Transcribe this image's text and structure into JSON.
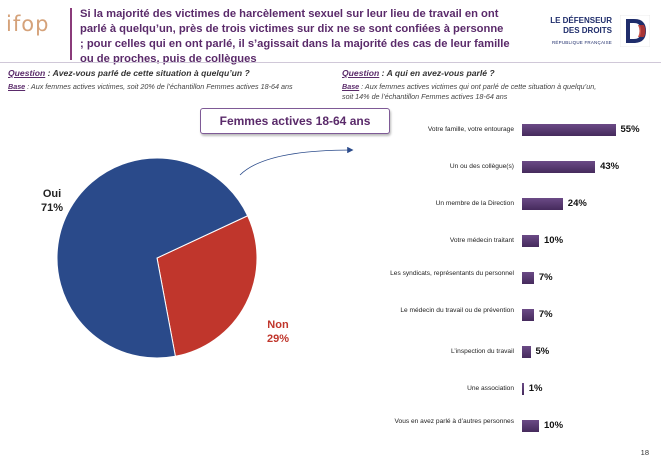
{
  "header": {
    "logo_text": "ifop",
    "headline": "Si la majorité des victimes de harcèlement sexuel sur leur lieu de travail en ont parlé à quelqu’un, près de trois victimes sur dix ne se sont confiées à personne ; pour celles qui en ont parlé, il s’agissait dans la majorité des cas de leur famille ou de proches, puis de collègues",
    "defenseur_line1": "LE DÉFENSEUR",
    "defenseur_line2": "DES DROITS",
    "defenseur_small": "RÉPUBLIQUE FRANÇAISE",
    "d_letter": "D"
  },
  "left": {
    "question_label": "Question",
    "question_text": " : Avez-vous parlé de cette situation à quelqu’un ?",
    "base_label": "Base",
    "base_text": " : Aux femmes actives victimes, soit 20% de l’échantillon Femmes actives 18-64 ans",
    "banner": "Femmes actives 18-64 ans"
  },
  "right": {
    "question_label": "Question",
    "question_text": " : A qui en avez-vous parlé ?",
    "base_label": "Base",
    "base_text": " : Aux femmes actives victimes qui ont parlé de cette situation à quelqu’un, soit 14% de l’échantillon Femmes actives 18-64 ans"
  },
  "colors": {
    "oui": "#2a4a8a",
    "non": "#c0362c",
    "bar": "#55386e",
    "accent": "#5a2a6a"
  },
  "chart_data": [
    {
      "type": "pie",
      "categories": [
        "Oui",
        "Non"
      ],
      "values": [
        71,
        29
      ],
      "labels": [
        "71%",
        "29%"
      ]
    },
    {
      "type": "bar",
      "orientation": "horizontal",
      "categories": [
        "Votre famille, votre entourage",
        "Un ou des collègue(s)",
        "Un membre de la Direction",
        "Votre médecin traitant",
        "Les syndicats, représentants du personnel",
        "Le médecin du travail ou de prévention",
        "L’inspection du travail",
        "Une association",
        "Vous en avez parlé à d’autres personnes"
      ],
      "values": [
        55,
        43,
        24,
        10,
        7,
        7,
        5,
        1,
        10
      ],
      "labels": [
        "55%",
        "43%",
        "24%",
        "10%",
        "7%",
        "7%",
        "5%",
        "1%",
        "10%"
      ]
    }
  ],
  "page_number": "18"
}
